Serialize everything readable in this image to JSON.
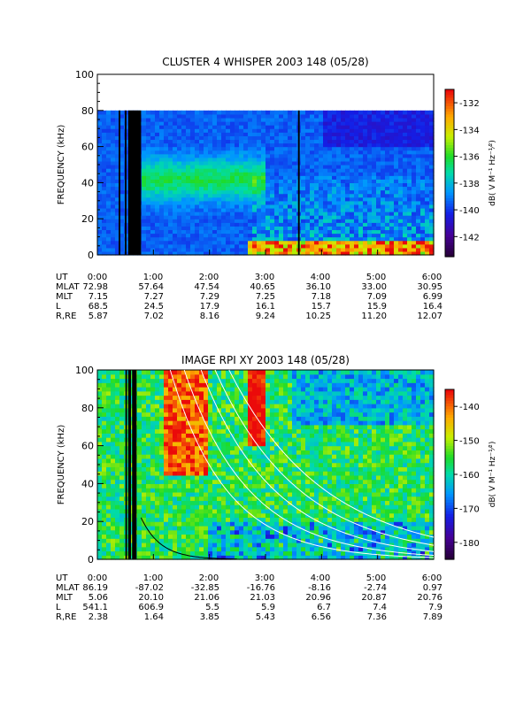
{
  "chart_data": [
    {
      "type": "heatmap",
      "title": "CLUSTER 4 WHISPER 2003 148 (05/28)",
      "ylabel": "FREQUENCY (kHz)",
      "ylim": [
        0,
        100
      ],
      "yticks": [
        0,
        20,
        40,
        60,
        80,
        100
      ],
      "xlim_hours": [
        0,
        6
      ],
      "data_ceiling_khz": 80,
      "colorbar": {
        "label": "dB( V M⁻¹ Hz⁻¹⁄²)",
        "range": [
          -143.5,
          -131
        ],
        "ticks": [
          -132,
          -134,
          -136,
          -138,
          -140,
          -142
        ]
      },
      "ephemeris": {
        "row_labels": [
          "UT",
          "MLAT",
          "MLT",
          "L",
          "R,RE"
        ],
        "columns": [
          [
            "0:00",
            "72.98",
            "7.15",
            "68.5",
            "5.87"
          ],
          [
            "1:00",
            "57.64",
            "7.27",
            "24.5",
            "7.02"
          ],
          [
            "2:00",
            "47.54",
            "7.29",
            "17.9",
            "8.16"
          ],
          [
            "3:00",
            "40.65",
            "7.25",
            "16.1",
            "9.24"
          ],
          [
            "4:00",
            "36.10",
            "7.18",
            "15.7",
            "10.25"
          ],
          [
            "5:00",
            "33.00",
            "7.09",
            "15.9",
            "11.20"
          ],
          [
            "6:00",
            "30.95",
            "6.99",
            "16.4",
            "12.07"
          ]
        ]
      },
      "data_gaps_hours": [
        [
          0.38,
          0.41
        ],
        [
          0.49,
          0.52
        ],
        [
          0.55,
          0.78
        ],
        [
          3.58,
          3.61
        ]
      ]
    },
    {
      "type": "heatmap",
      "title": "IMAGE RPI XY 2003 148 (05/28)",
      "ylabel": "FREQUENCY (kHz)",
      "ylim": [
        0,
        100
      ],
      "yticks": [
        0,
        20,
        40,
        60,
        80,
        100
      ],
      "xlim_hours": [
        0,
        6
      ],
      "colorbar": {
        "label": "dB( V M⁻¹ Hz⁻¹⁄²)",
        "range": [
          -185,
          -135
        ],
        "ticks": [
          -140,
          -150,
          -160,
          -170,
          -180
        ]
      },
      "ephemeris": {
        "row_labels": [
          "UT",
          "MLAT",
          "MLT",
          "L",
          "R,RE"
        ],
        "columns": [
          [
            "0:00",
            "86.19",
            "5.06",
            "541.1",
            "2.38"
          ],
          [
            "1:00",
            "-87.02",
            "20.10",
            "606.9",
            "1.64"
          ],
          [
            "2:00",
            "-32.85",
            "21.06",
            "5.5",
            "3.85"
          ],
          [
            "3:00",
            "-16.76",
            "21.03",
            "5.9",
            "5.43"
          ],
          [
            "4:00",
            "-8.16",
            "20.96",
            "6.7",
            "6.56"
          ],
          [
            "5:00",
            "-2.74",
            "20.87",
            "7.4",
            "7.36"
          ],
          [
            "6:00",
            "0.97",
            "20.76",
            "7.9",
            "7.89"
          ]
        ]
      },
      "data_gaps_hours": [
        [
          0.5,
          0.53
        ],
        [
          0.55,
          0.6
        ],
        [
          0.62,
          0.7
        ]
      ]
    }
  ]
}
